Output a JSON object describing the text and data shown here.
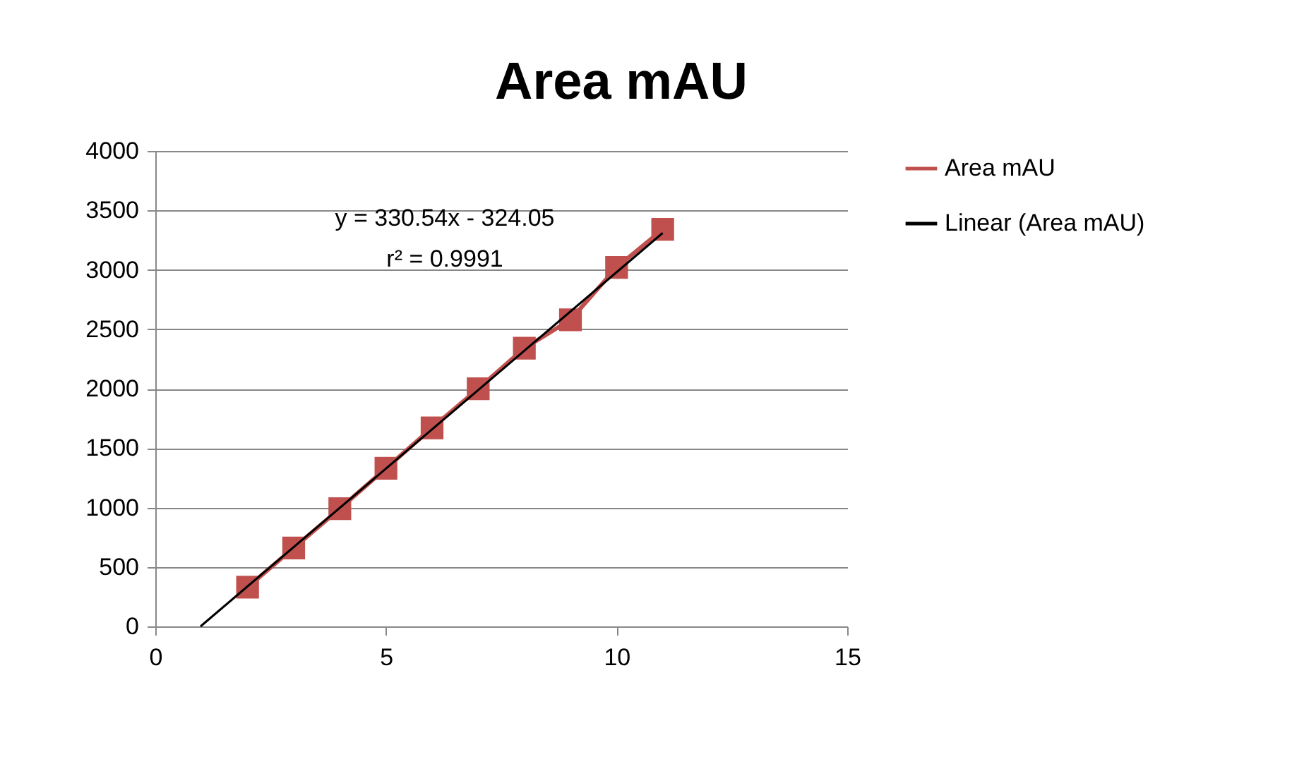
{
  "chart_data": {
    "type": "line",
    "title": "Area mAU",
    "series": [
      {
        "name": "Area mAU",
        "color": "#c0504d",
        "marker": "square",
        "x": [
          2,
          3,
          4,
          5,
          6,
          7,
          8,
          9,
          10,
          11
        ],
        "values": [
          330,
          660,
          990,
          1330,
          1670,
          2000,
          2340,
          2580,
          3020,
          3340
        ]
      },
      {
        "name": "Linear (Area mAU)",
        "color": "#000000",
        "marker": "none",
        "x": [
          0.98,
          11
        ],
        "values": [
          0,
          3310
        ]
      }
    ],
    "annotations": [
      "y = 330.54x - 324.05",
      "r² = 0.9991"
    ],
    "xlim": [
      0,
      15
    ],
    "xticks": [
      0,
      5,
      10,
      15
    ],
    "ylim": [
      0,
      4000
    ],
    "yticks": [
      0,
      500,
      1000,
      1500,
      2000,
      2500,
      3000,
      3500,
      4000
    ],
    "grid": "y",
    "legend": "right",
    "line_style": "solid"
  }
}
